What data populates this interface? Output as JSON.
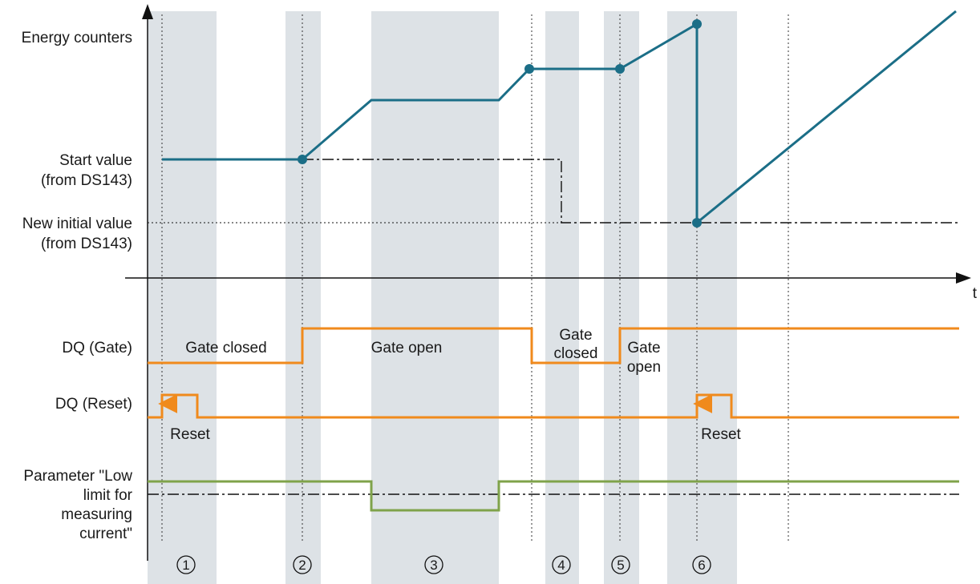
{
  "labels": {
    "energy_counters": "Energy counters",
    "start_value_1": "Start value",
    "start_value_2": "(from DS143)",
    "new_initial_1": "New initial value",
    "new_initial_2": "(from DS143)",
    "time_axis": "t",
    "dq_gate": "DQ (Gate)",
    "dq_reset": "DQ (Reset)",
    "param_1": "Parameter \"Low",
    "param_2": "limit for",
    "param_3": "measuring",
    "param_4": "current\""
  },
  "annotations": {
    "gate_closed_1": "Gate closed",
    "gate_open_1": "Gate open",
    "gate_closed_2a": "Gate",
    "gate_closed_2b": "closed",
    "gate_open_2a": "Gate",
    "gate_open_2b": "open",
    "reset_1": "Reset",
    "reset_2": "Reset"
  },
  "phases": [
    "1",
    "2",
    "3",
    "4",
    "5",
    "6"
  ],
  "colors": {
    "band": "#dde2e6",
    "counter": "#1b6e87",
    "signal": "#f08a1c",
    "parameter": "#7fa34a",
    "axis": "#111111"
  }
}
